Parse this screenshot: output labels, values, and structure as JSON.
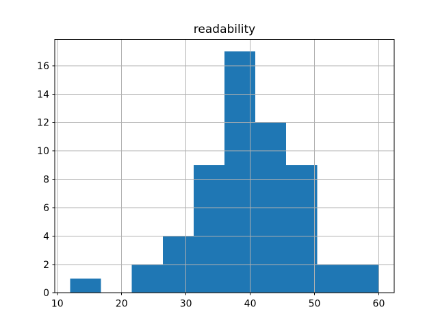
{
  "figure": {
    "background": "#ffffff"
  },
  "chart_data": {
    "type": "bar",
    "subtype": "histogram",
    "title": "readability",
    "xlabel": "",
    "ylabel": "",
    "bin_edges": [
      12,
      16.8,
      21.6,
      26.4,
      31.2,
      36,
      40.8,
      45.6,
      50.4,
      55.2,
      60
    ],
    "counts": [
      1,
      0,
      2,
      4,
      9,
      17,
      12,
      9,
      2,
      2
    ],
    "xlim": [
      9.6,
      62.4
    ],
    "ylim": [
      0,
      17.85
    ],
    "xticks": [
      10,
      20,
      30,
      40,
      50,
      60
    ],
    "yticks": [
      0,
      2,
      4,
      6,
      8,
      10,
      12,
      14,
      16
    ],
    "grid": true,
    "legend": null,
    "bar_color": "#1f77b4",
    "grid_color": "#b0b0b0",
    "spine_color": "#000000",
    "tick_color": "#000000",
    "title_color": "#000000"
  }
}
